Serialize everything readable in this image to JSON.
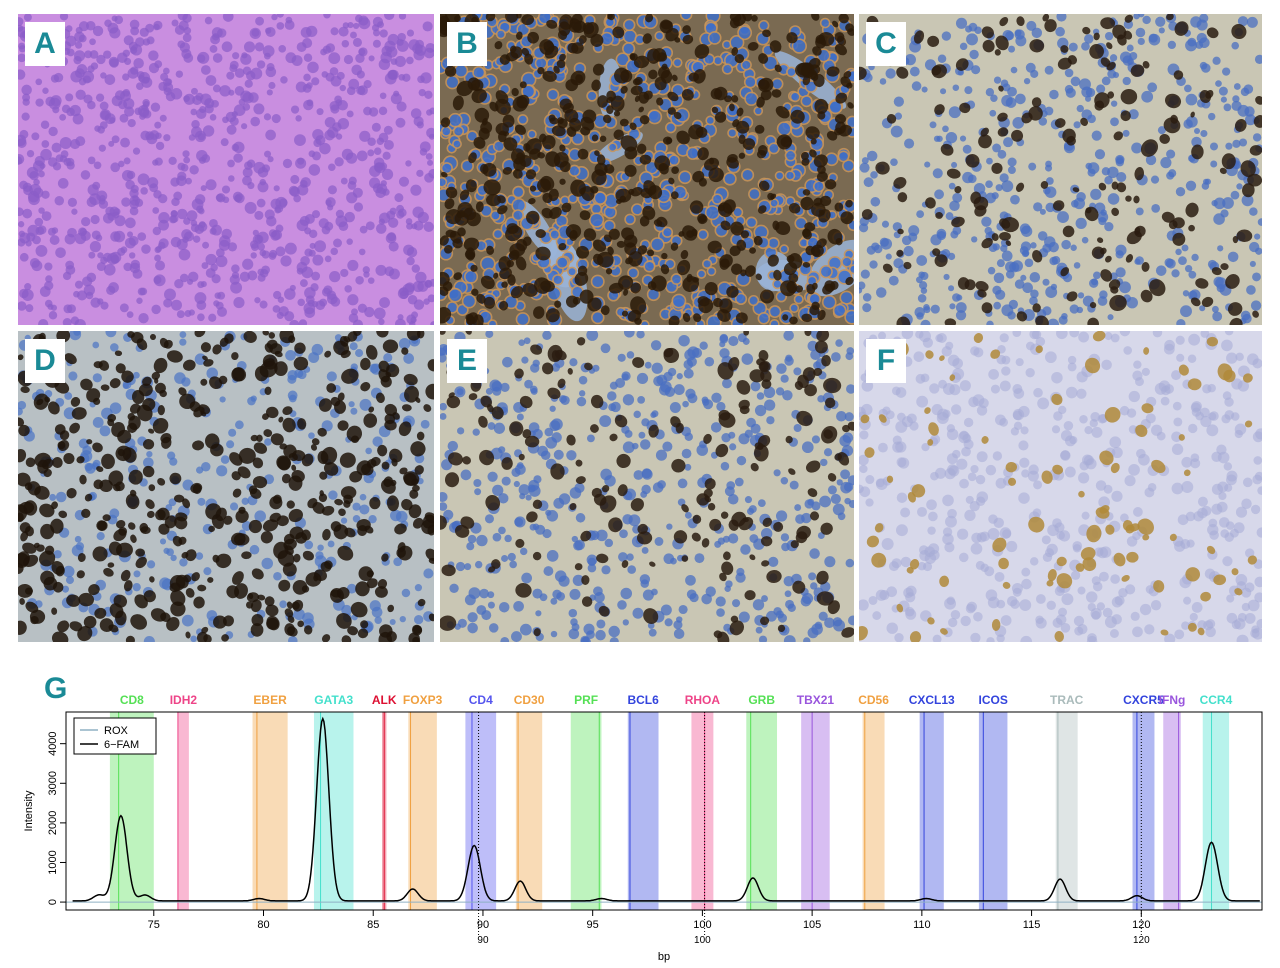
{
  "panels": [
    {
      "label": "A",
      "stain": "he"
    },
    {
      "label": "B",
      "stain": "membrane"
    },
    {
      "label": "C",
      "stain": "nuclear-moderate"
    },
    {
      "label": "D",
      "stain": "nuclear-dense"
    },
    {
      "label": "E",
      "stain": "nuclear-moderate"
    },
    {
      "label": "F",
      "stain": "faint"
    }
  ],
  "chart_label": "G",
  "chart_data": {
    "type": "line",
    "xlabel": "bp",
    "ylabel": "Intensity",
    "xlim": [
      71,
      125.5
    ],
    "ylim": [
      -200,
      4800
    ],
    "xticks": [
      75,
      80,
      85,
      90,
      95,
      100,
      105,
      110,
      115,
      120
    ],
    "yticks": [
      0,
      1000,
      2000,
      3000,
      4000
    ],
    "secondary_xticks": [
      90,
      100,
      120
    ],
    "dotted_guides": [
      89.8,
      100.1,
      120.0
    ],
    "legend": [
      {
        "name": "ROX",
        "color": "#8fb0c4"
      },
      {
        "name": "6−FAM",
        "color": "#000000"
      }
    ],
    "legend_position": "top-left",
    "markers": [
      {
        "name": "CD8",
        "start": 73.0,
        "end": 75.0,
        "line": 73.4,
        "color": "#55e055"
      },
      {
        "name": "IDH2",
        "start": 76.1,
        "end": 76.6,
        "line": 76.1,
        "color": "#ee4488"
      },
      {
        "name": "EBER",
        "start": 79.5,
        "end": 81.1,
        "line": 79.7,
        "color": "#f0a040"
      },
      {
        "name": "GATA3",
        "start": 82.3,
        "end": 84.1,
        "line": 82.6,
        "color": "#44e0cc"
      },
      {
        "name": "ALK",
        "start": 85.4,
        "end": 85.6,
        "line": 85.5,
        "color": "#dd1133"
      },
      {
        "name": "FOXP3",
        "start": 86.6,
        "end": 87.9,
        "line": 86.7,
        "color": "#f0a040"
      },
      {
        "name": "CD4",
        "start": 89.2,
        "end": 90.6,
        "line": 89.5,
        "color": "#5555ee"
      },
      {
        "name": "CD30",
        "start": 91.5,
        "end": 92.7,
        "line": 91.6,
        "color": "#f0a040"
      },
      {
        "name": "PRF",
        "start": 94.0,
        "end": 95.4,
        "line": 95.3,
        "color": "#55e055"
      },
      {
        "name": "BCL6",
        "start": 96.6,
        "end": 98.0,
        "line": 96.7,
        "color": "#3344dd"
      },
      {
        "name": "RHOA",
        "start": 99.5,
        "end": 100.5,
        "line": 100.1,
        "color": "#ee4488"
      },
      {
        "name": "GRB",
        "start": 102.0,
        "end": 103.4,
        "line": 102.2,
        "color": "#55e055"
      },
      {
        "name": "TBX21",
        "start": 104.5,
        "end": 105.8,
        "line": 105.0,
        "color": "#9955dd"
      },
      {
        "name": "CD56",
        "start": 107.3,
        "end": 108.3,
        "line": 107.4,
        "color": "#f0a040"
      },
      {
        "name": "CXCL13",
        "start": 109.9,
        "end": 111.0,
        "line": 110.1,
        "color": "#3344dd"
      },
      {
        "name": "ICOS",
        "start": 112.6,
        "end": 113.9,
        "line": 112.8,
        "color": "#3344dd"
      },
      {
        "name": "TRAC",
        "start": 116.1,
        "end": 117.1,
        "line": 116.2,
        "color": "#aabbbb"
      },
      {
        "name": "CXCR5",
        "start": 119.6,
        "end": 120.6,
        "line": 119.8,
        "color": "#3344dd"
      },
      {
        "name": "IFNg",
        "start": 121.0,
        "end": 121.8,
        "line": 121.7,
        "color": "#9955dd"
      },
      {
        "name": "CCR4",
        "start": 122.8,
        "end": 124.0,
        "line": 123.2,
        "color": "#44e0cc"
      }
    ],
    "series": [
      {
        "name": "6−FAM",
        "color": "#000000",
        "peaks": [
          {
            "x": 72.5,
            "y": 150
          },
          {
            "x": 73.5,
            "y": 2150
          },
          {
            "x": 74.6,
            "y": 150
          },
          {
            "x": 79.8,
            "y": 60
          },
          {
            "x": 82.7,
            "y": 4600
          },
          {
            "x": 86.8,
            "y": 300
          },
          {
            "x": 89.6,
            "y": 1400
          },
          {
            "x": 91.7,
            "y": 500
          },
          {
            "x": 95.4,
            "y": 60
          },
          {
            "x": 102.3,
            "y": 580
          },
          {
            "x": 110.2,
            "y": 60
          },
          {
            "x": 116.3,
            "y": 550
          },
          {
            "x": 119.8,
            "y": 130
          },
          {
            "x": 123.2,
            "y": 1480
          }
        ]
      },
      {
        "name": "ROX",
        "color": "#8fb0c4",
        "peaks": []
      }
    ]
  }
}
